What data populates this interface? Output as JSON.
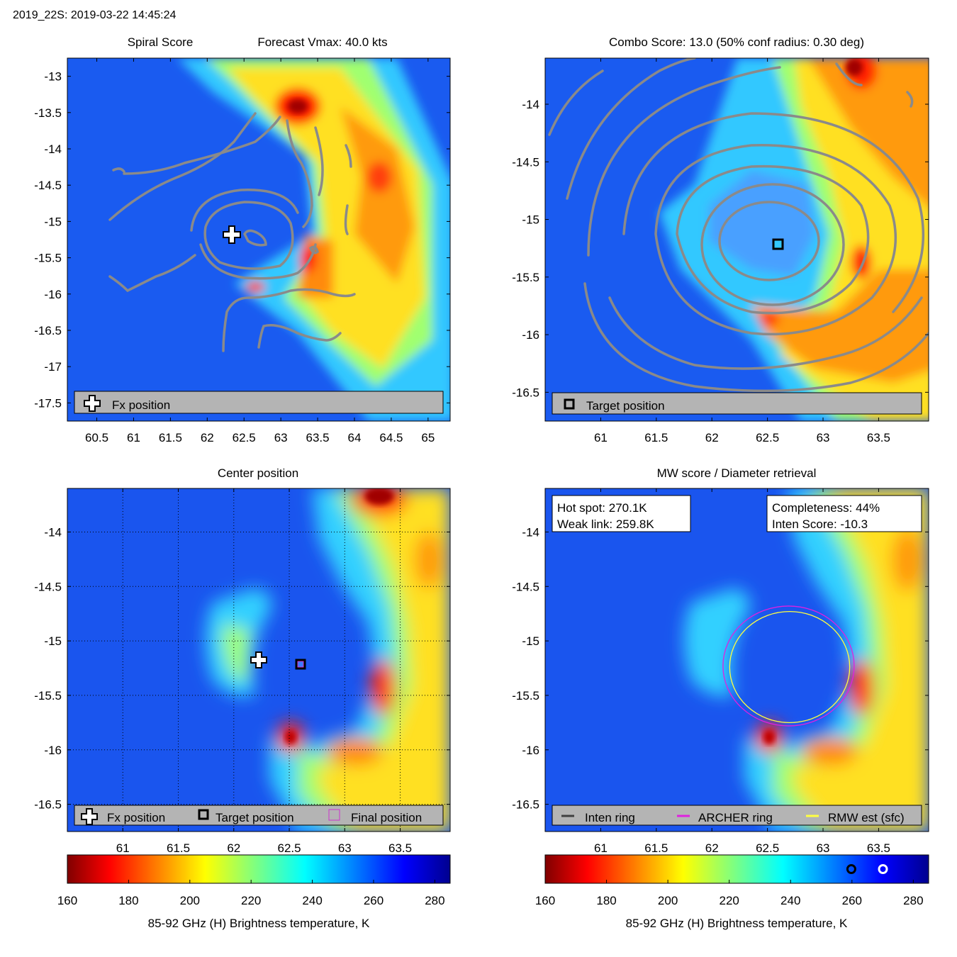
{
  "page_title": "2019_22S: 2019-03-22 14:45:24",
  "colors": {
    "gray_contour": "#8a8a8a",
    "legend_bg": "#b4b4b4",
    "archer_ring": "#e020e0",
    "rmw_ring": "#ffff40",
    "inten_ring": "#404040",
    "final_marker": "#cc33cc"
  },
  "chart_data": [
    {
      "id": "spiral",
      "type": "heatmap",
      "title_left": "Spiral Score",
      "title_right": "Forecast Vmax: 40.0 kts",
      "xlim": [
        60.1,
        65.3
      ],
      "ylim": [
        -17.75,
        -12.75
      ],
      "x_ticks": [
        "60.5",
        "61",
        "61.5",
        "62",
        "62.5",
        "63",
        "63.5",
        "64",
        "64.5",
        "65"
      ],
      "y_ticks": [
        "-13",
        "-13.5",
        "-14",
        "-14.5",
        "-15",
        "-15.5",
        "-16",
        "-16.5",
        "-17",
        "-17.5"
      ],
      "markers": [
        {
          "kind": "fx-cross",
          "lon": 62.3,
          "lat": -15.18
        }
      ],
      "legend": [
        {
          "icon": "cross-icon",
          "label": "Fx position"
        }
      ]
    },
    {
      "id": "combo",
      "type": "heatmap",
      "title": "Combo Score: 13.0  (50% conf radius: 0.30 deg)",
      "xlim": [
        60.5,
        63.95
      ],
      "ylim": [
        -16.75,
        -13.6
      ],
      "x_ticks": [
        "61",
        "61.5",
        "62",
        "62.5",
        "63",
        "63.5"
      ],
      "y_ticks": [
        "-14",
        "-14.5",
        "-15",
        "-15.5",
        "-16",
        "-16.5"
      ],
      "markers": [
        {
          "kind": "target-square",
          "lon": 62.68,
          "lat": -15.22
        }
      ],
      "legend": [
        {
          "icon": "square-icon",
          "label": "Target position"
        }
      ]
    },
    {
      "id": "center",
      "type": "heatmap",
      "title": "Center position",
      "xlim": [
        60.5,
        63.95
      ],
      "ylim": [
        -16.75,
        -13.6
      ],
      "x_ticks": [
        "61",
        "61.5",
        "62",
        "62.5",
        "63",
        "63.5"
      ],
      "y_ticks": [
        "-14",
        "-14.5",
        "-15",
        "-15.5",
        "-16",
        "-16.5"
      ],
      "grid": true,
      "markers": [
        {
          "kind": "fx-cross",
          "lon": 62.3,
          "lat": -15.17
        },
        {
          "kind": "target-square",
          "lon": 62.68,
          "lat": -15.22
        }
      ],
      "legend": [
        {
          "icon": "cross-icon",
          "label": "Fx position"
        },
        {
          "icon": "square-icon",
          "label": "Target position"
        },
        {
          "icon": "outline-square-icon",
          "label": "Final position"
        }
      ]
    },
    {
      "id": "mw",
      "type": "heatmap",
      "title": "MW score / Diameter retrieval",
      "xlim": [
        60.5,
        63.95
      ],
      "ylim": [
        -16.75,
        -13.6
      ],
      "x_ticks": [
        "61",
        "61.5",
        "62",
        "62.5",
        "63",
        "63.5"
      ],
      "y_ticks": [
        "-14",
        "-14.5",
        "-15",
        "-15.5",
        "-16",
        "-16.5"
      ],
      "info_left": [
        "Hot spot: 270.1K",
        "Weak link: 259.8K"
      ],
      "info_right": [
        "Completeness: 44%",
        "Inten Score: -10.3"
      ],
      "rings": [
        {
          "name": "archer",
          "lon": 62.69,
          "lat": -15.23,
          "rlon": 0.59,
          "rlat": 0.55
        },
        {
          "name": "rmw",
          "lon": 62.7,
          "lat": -15.24,
          "rlon": 0.54,
          "rlat": 0.51
        }
      ],
      "legend": [
        {
          "icon": "line-icon-dark",
          "label": "Inten ring"
        },
        {
          "icon": "line-icon-magenta",
          "label": "ARCHER ring"
        },
        {
          "icon": "line-icon-yellow",
          "label": "RMW est (sfc)"
        }
      ]
    }
  ],
  "colorbars": [
    {
      "id": "cb-left",
      "ticks": [
        "160",
        "180",
        "200",
        "220",
        "240",
        "260",
        "280"
      ],
      "range": [
        160,
        285
      ],
      "label": "85-92 GHz (H) Brightness temperature, K"
    },
    {
      "id": "cb-right",
      "ticks": [
        "160",
        "180",
        "200",
        "220",
        "240",
        "260",
        "280"
      ],
      "range": [
        160,
        285
      ],
      "label": "85-92 GHz (H) Brightness temperature, K",
      "markers": [
        {
          "kind": "black-ring",
          "value": 259.8
        },
        {
          "kind": "white-ring",
          "value": 270.1
        }
      ]
    }
  ]
}
